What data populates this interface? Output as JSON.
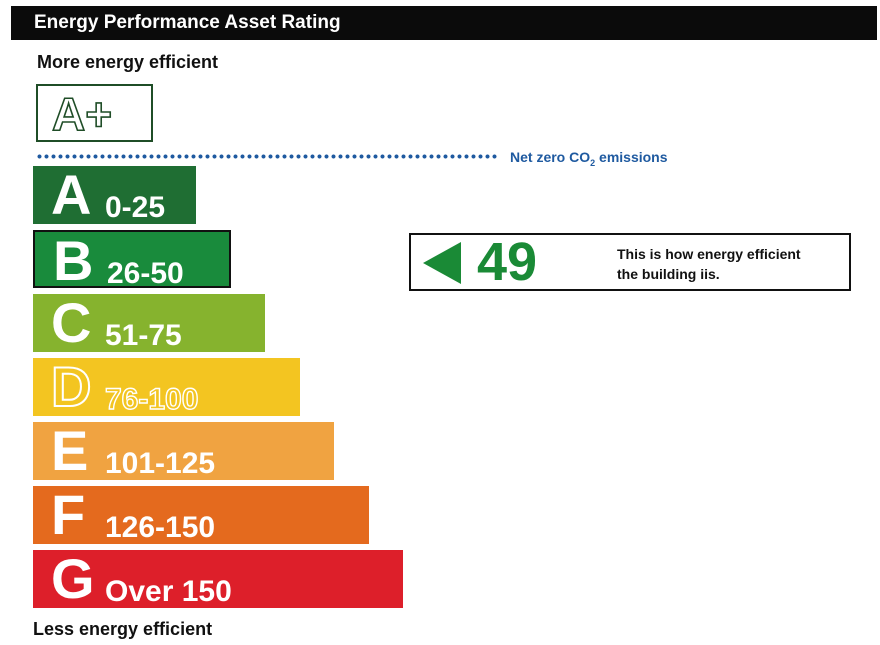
{
  "header": {
    "title": "Energy Performance Asset Rating"
  },
  "labels": {
    "more_efficient": "More energy efficient",
    "less_efficient": "Less energy efficient",
    "net_zero_prefix": "Net zero CO",
    "net_zero_sub": "2",
    "net_zero_suffix": " emissions"
  },
  "chart_data": {
    "type": "bar",
    "title": "Energy Performance Asset Rating",
    "top_band": {
      "letter": "A+"
    },
    "categories": [
      "A",
      "B",
      "C",
      "D",
      "E",
      "F",
      "G"
    ],
    "bands": [
      {
        "letter": "A",
        "range": "0-25",
        "color": "#1f6e33"
      },
      {
        "letter": "B",
        "range": "26-50",
        "color": "#198b3c"
      },
      {
        "letter": "C",
        "range": "51-75",
        "color": "#86b32e"
      },
      {
        "letter": "D",
        "range": "76-100",
        "color": "#f3c521"
      },
      {
        "letter": "E",
        "range": "101-125",
        "color": "#f0a341"
      },
      {
        "letter": "F",
        "range": "126-150",
        "color": "#e46a1e"
      },
      {
        "letter": "G",
        "range": "Over 150",
        "color": "#dd1f2a"
      }
    ],
    "rating": {
      "value": "49",
      "band": "B",
      "text_line1": "This is how energy efficient",
      "text_line2": "the building iis.",
      "color": "#1a8a36"
    }
  }
}
